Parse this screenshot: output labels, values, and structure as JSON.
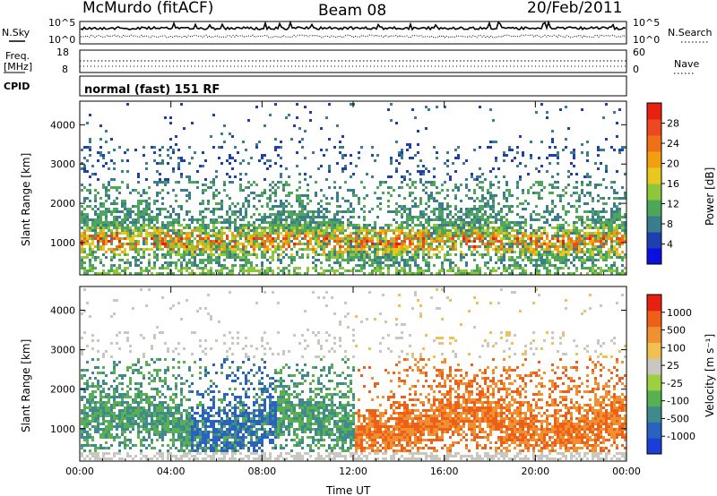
{
  "header": {
    "station": "McMurdo (fitACF)",
    "beam": "Beam 08",
    "date": "20/Feb/2011"
  },
  "panel_labels": {
    "nsky": "N.Sky",
    "nsky_ticks": [
      "10^5",
      "10^0"
    ],
    "nsearch": "N.Search",
    "nsearch_ticks": [
      "10^5",
      "10^0"
    ],
    "freq": "Freq.",
    "freq_unit": "[MHz]",
    "freq_ticks": [
      "18",
      "8"
    ],
    "nave": "Nave",
    "nave_ticks": [
      "60",
      "0"
    ],
    "cpid": "CPID",
    "cpid_text": "normal (fast) 151 RF"
  },
  "chart_data": [
    {
      "type": "heatmap",
      "panel": "power",
      "ylabel": "Slant Range [km]",
      "ylim": [
        180,
        4600
      ],
      "yticks": [
        1000,
        2000,
        3000,
        4000
      ],
      "xticks": [
        "00:00",
        "04:00",
        "08:00",
        "12:00",
        "16:00",
        "20:00",
        "00:00"
      ],
      "colorbar": {
        "label": "Power [dB]",
        "ticks": [
          "4",
          "8",
          "12",
          "16",
          "20",
          "24",
          "28"
        ],
        "colors": [
          "#0a10e0",
          "#1e3fb0",
          "#3a7d8c",
          "#4ea65a",
          "#8ec83a",
          "#e8c81e",
          "#f2a010",
          "#f07018",
          "#ee4820",
          "#e82010"
        ]
      }
    },
    {
      "type": "heatmap",
      "panel": "velocity",
      "ylabel": "Slant Range [km]",
      "ylim": [
        180,
        4600
      ],
      "yticks": [
        1000,
        2000,
        3000,
        4000
      ],
      "xticks": [
        "00:00",
        "04:00",
        "08:00",
        "12:00",
        "16:00",
        "20:00",
        "00:00"
      ],
      "xlabel": "Time UT",
      "colorbar": {
        "label": "Velocity [m s⁻¹]",
        "ticks": [
          "1000",
          "500",
          "100",
          "25",
          "-25",
          "-100",
          "-500",
          "-1000"
        ],
        "colors": [
          "#1a3fd8",
          "#2a62c0",
          "#3e8a8c",
          "#58b050",
          "#9cd040",
          "#c8c8c0",
          "#f0c050",
          "#f09030",
          "#ee6018",
          "#e82010"
        ]
      }
    }
  ]
}
